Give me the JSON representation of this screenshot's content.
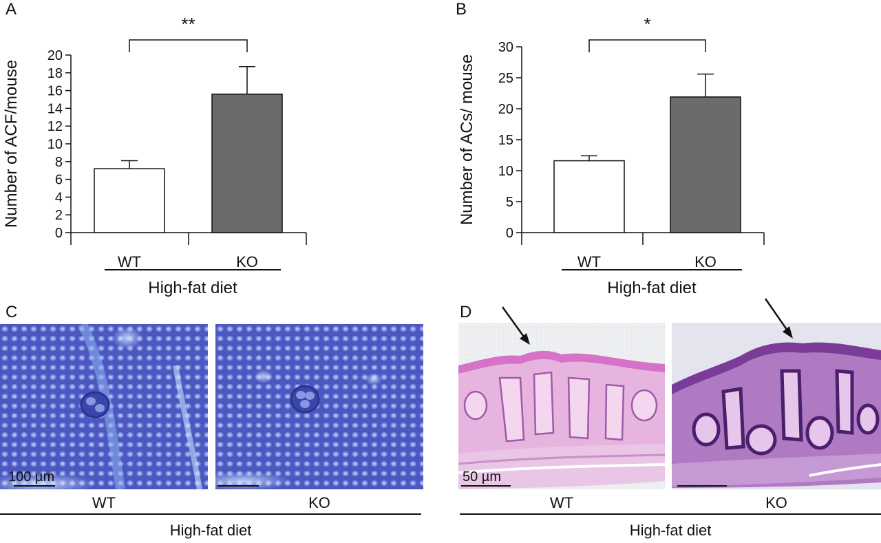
{
  "chart_data": [
    {
      "panel": "A",
      "type": "bar",
      "categories": [
        "WT",
        "KO"
      ],
      "values": [
        7.2,
        15.6
      ],
      "errors": [
        0.9,
        3.1
      ],
      "bar_colors": [
        "#ffffff",
        "#6b6b6b"
      ],
      "ylabel": "Number of ACF/mouse",
      "group_label": "High-fat diet",
      "ylim": [
        0,
        20
      ],
      "yticks": [
        0,
        2,
        4,
        6,
        8,
        10,
        12,
        14,
        16,
        18,
        20
      ],
      "significance": "**"
    },
    {
      "panel": "B",
      "type": "bar",
      "categories": [
        "WT",
        "KO"
      ],
      "values": [
        11.6,
        21.9
      ],
      "errors": [
        0.8,
        3.7
      ],
      "bar_colors": [
        "#ffffff",
        "#6b6b6b"
      ],
      "ylabel": "Number of ACs/ mouse",
      "group_label": "High-fat diet",
      "ylim": [
        0,
        30
      ],
      "yticks": [
        0,
        5,
        10,
        15,
        20,
        25,
        30
      ],
      "significance": "*"
    }
  ],
  "panels": {
    "c": {
      "letter": "C",
      "scale": "100 µm",
      "wt": "WT",
      "ko": "KO",
      "group": "High-fat diet"
    },
    "d": {
      "letter": "D",
      "scale": "50 µm",
      "wt": "WT",
      "ko": "KO",
      "group": "High-fat diet"
    }
  },
  "colors": {
    "stain_blue": "#4f5fc8",
    "he_pink": "#d98fcf",
    "he_purple": "#6a2f8f"
  }
}
